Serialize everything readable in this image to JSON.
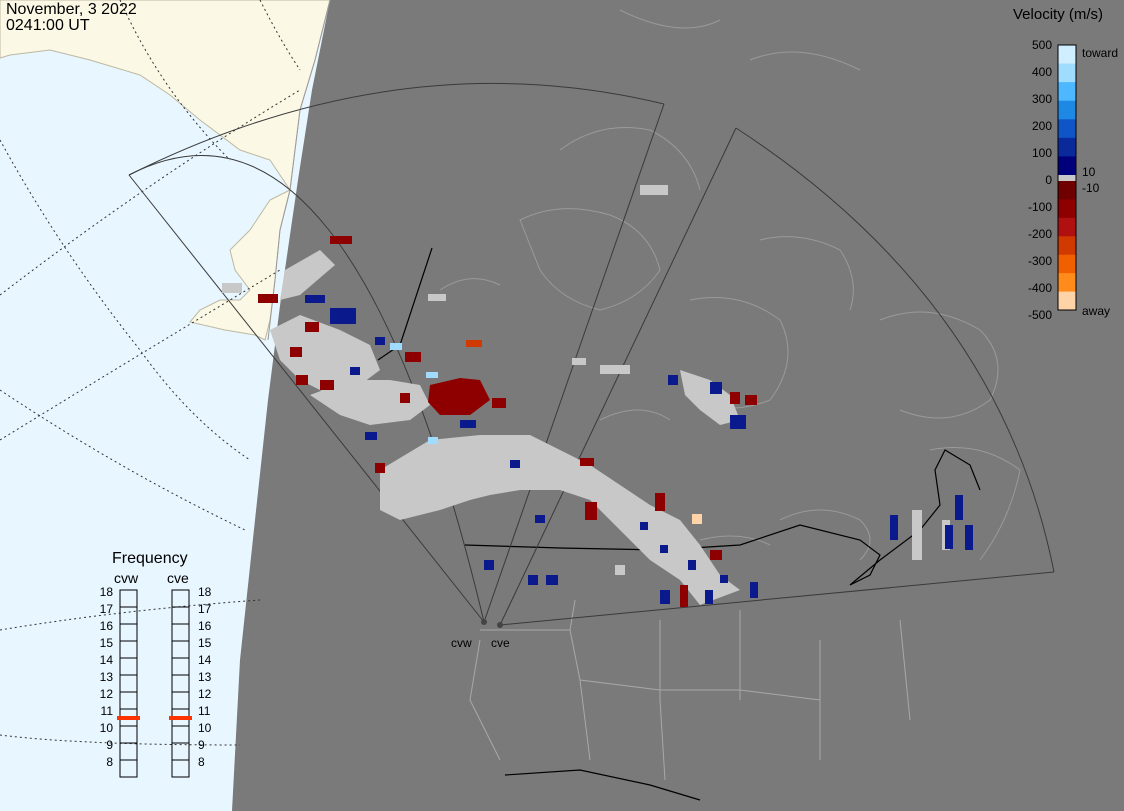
{
  "header": {
    "date": "November, 3 2022",
    "time": "0241:00 UT"
  },
  "legend": {
    "title": "Velocity (m/s)",
    "ticks": [
      "500",
      "400",
      "300",
      "200",
      "100",
      "0",
      "-100",
      "-200",
      "-300",
      "-400",
      "-500"
    ],
    "near_zero_labels": [
      "10",
      "-10"
    ],
    "end_labels": {
      "top": "toward",
      "bottom": "away"
    },
    "colors": {
      "toward": [
        "#cfeeff",
        "#9fdcff",
        "#4db8ff",
        "#1e88e5",
        "#1055c8",
        "#0a2a9c",
        "#00007a"
      ],
      "away": [
        "#6e0000",
        "#8e0000",
        "#b01010",
        "#d03a00",
        "#f06000",
        "#ff8c1a",
        "#ffd3a8"
      ],
      "ground_scatter": "#c8c8c8"
    }
  },
  "frequency": {
    "title": "Frequency",
    "radars": [
      {
        "name": "cvw",
        "value_mhz": 11
      },
      {
        "name": "cve",
        "value_mhz": 11
      }
    ],
    "scale": [
      "18",
      "17",
      "16",
      "15",
      "14",
      "13",
      "12",
      "11",
      "10",
      "9",
      "8"
    ],
    "indicator_color": "#ff3300"
  },
  "radar_sites": [
    {
      "name": "cvw",
      "label": "cvw"
    },
    {
      "name": "cve",
      "label": "cve"
    }
  ],
  "map": {
    "colors": {
      "night_side": "#7a7a7a",
      "ocean_day": "#e8f6ff",
      "land_day": "#fbf8e6",
      "coast_lines": "#9a9a9a",
      "borders": "#000000",
      "fov_lines": "#3a3a3a"
    }
  }
}
